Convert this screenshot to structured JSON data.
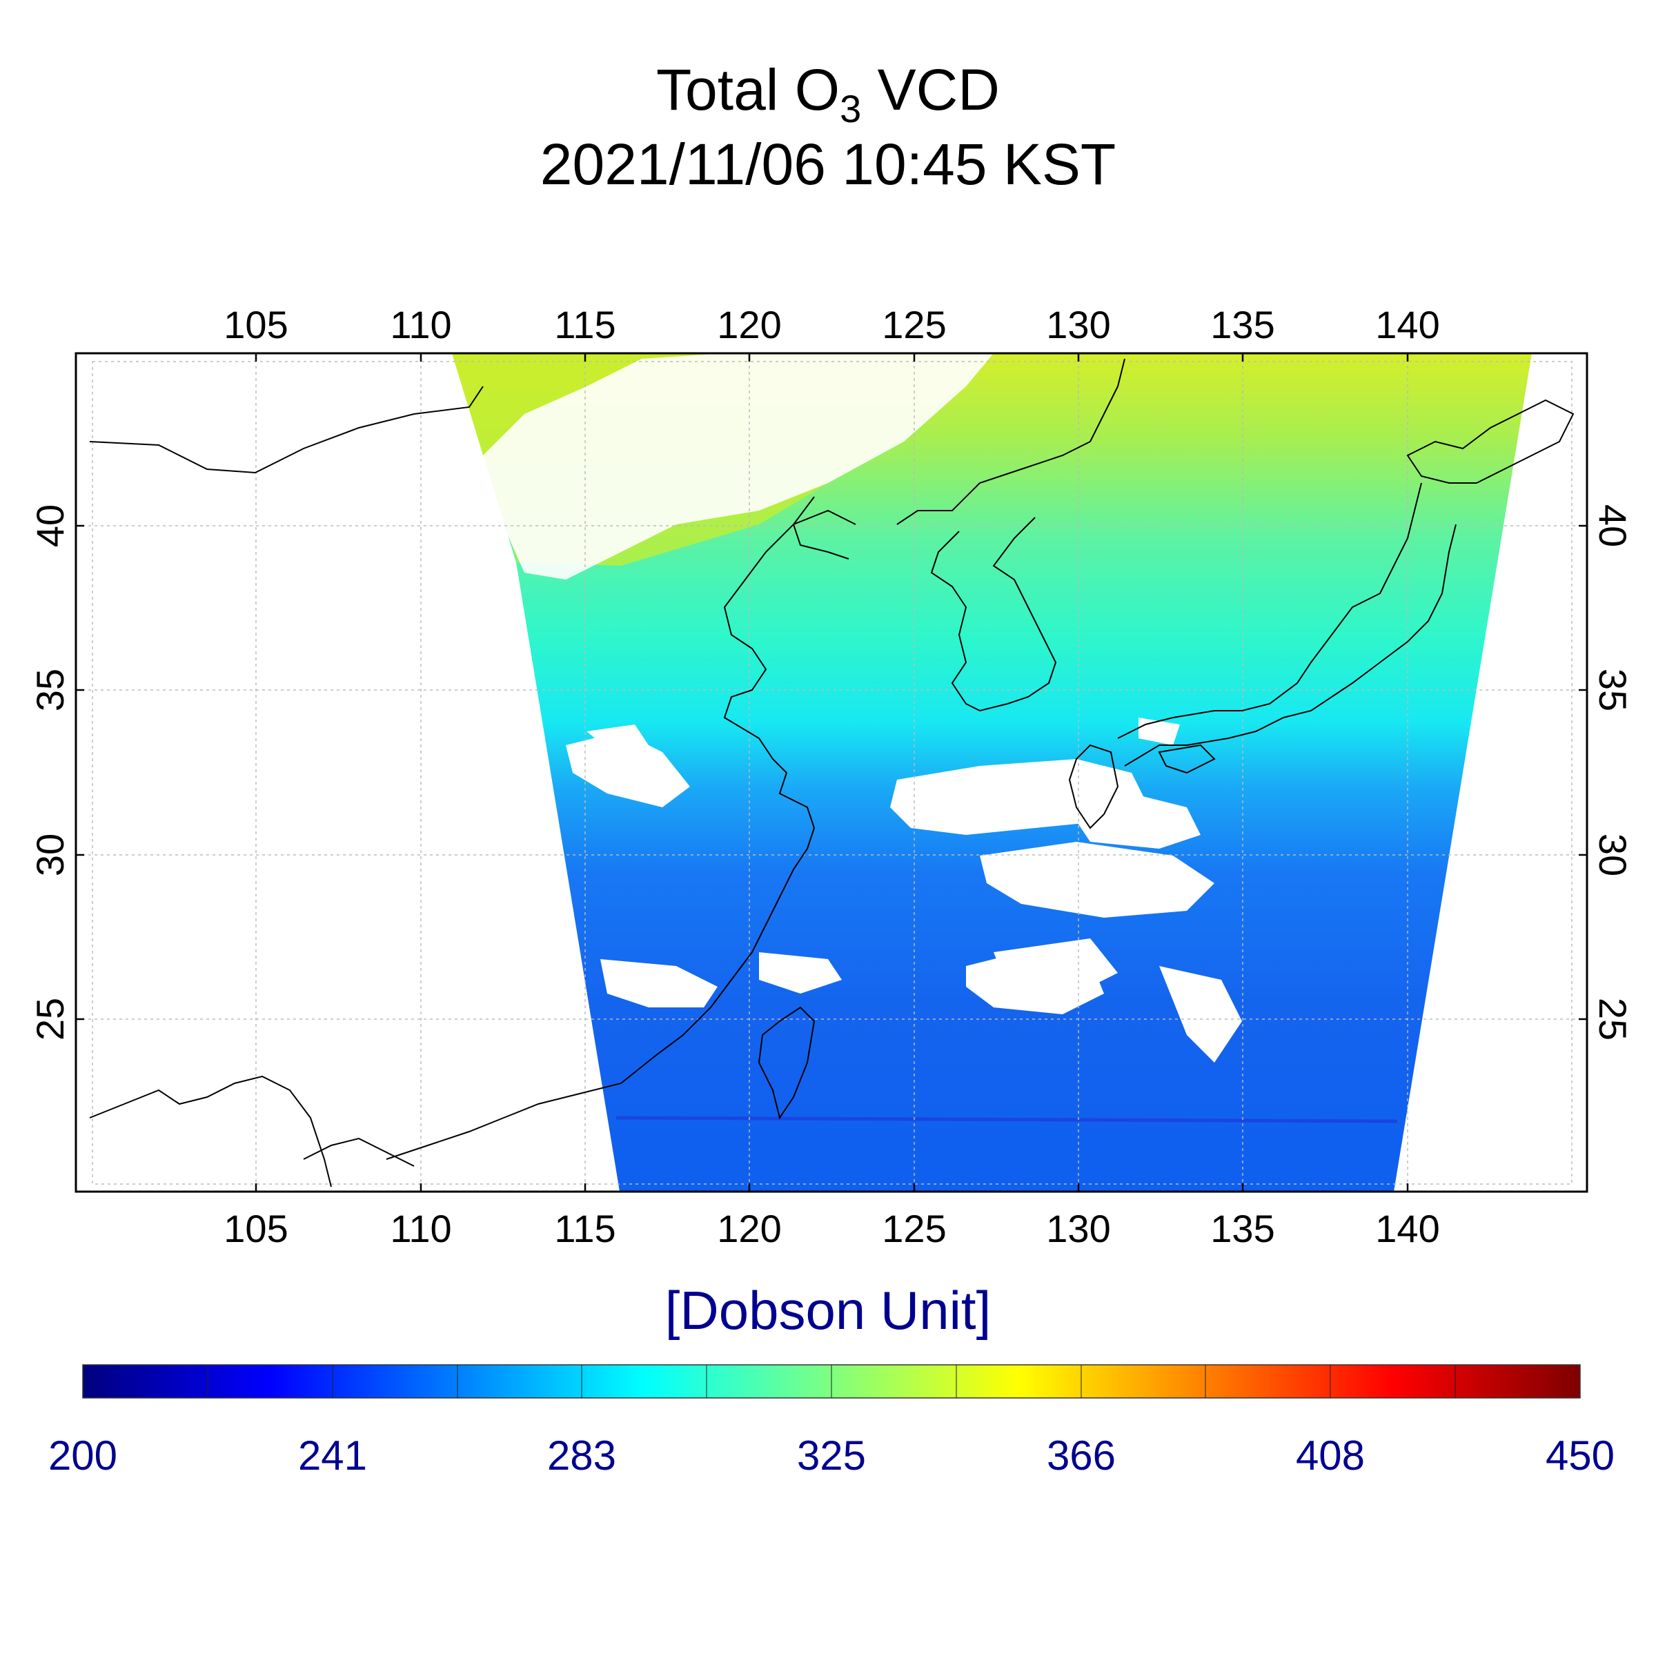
{
  "title": {
    "line1_prefix": "Total O",
    "line1_sub": "3",
    "line1_suffix": " VCD",
    "line2": "2021/11/06 10:45 KST"
  },
  "map": {
    "lon_range": [
      99.5,
      145.5
    ],
    "lat_range": [
      20.0,
      45.5
    ],
    "lon_ticks": [
      "105",
      "110",
      "115",
      "120",
      "125",
      "130",
      "135",
      "140"
    ],
    "lat_ticks": [
      "40",
      "35",
      "30",
      "25"
    ],
    "grid": true,
    "region": "East Asia (China, Korea, Japan, Taiwan)"
  },
  "colorbar": {
    "unit": "[Dobson Unit]",
    "min": 200,
    "max": 450,
    "tick_labels": [
      "200",
      "241",
      "283",
      "325",
      "366",
      "408",
      "450"
    ],
    "colormap": "jet",
    "colors": [
      "#00007f",
      "#0000ff",
      "#007fff",
      "#00ffff",
      "#7fff7f",
      "#ffff00",
      "#ff7f00",
      "#ff0000",
      "#7f0000"
    ]
  }
}
